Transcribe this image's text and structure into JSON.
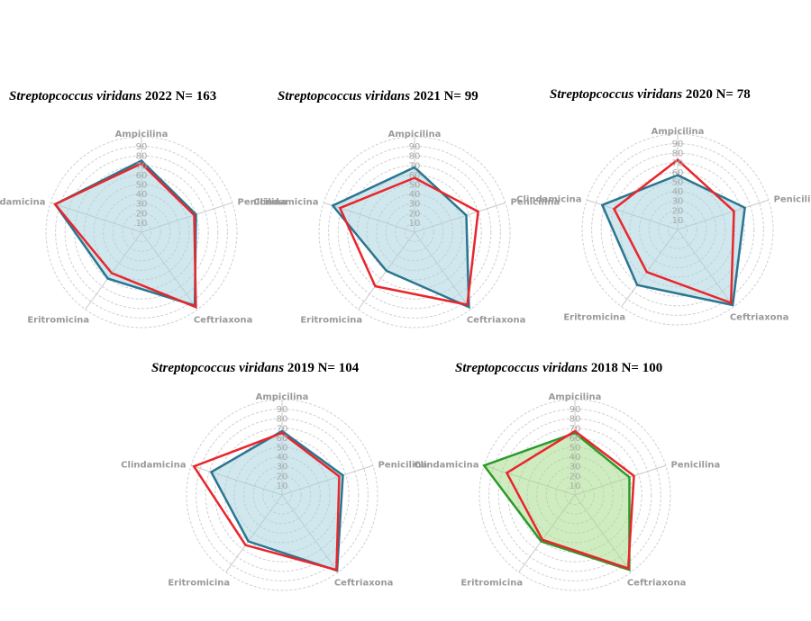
{
  "colors": {
    "teal": "#2a7590",
    "teal_fill": "#a7d3de",
    "red": "#e8262c",
    "green": "#2b9a2b",
    "green_fill": "#a8dc8c"
  },
  "chart_data": [
    {
      "type": "radar",
      "title": {
        "species": "Streptopcoccus viridans",
        "rest": " 2022 N= 163"
      },
      "axes": [
        "Ampicilina",
        "Penicilina",
        "Ceftriaxona",
        "Eritromicina",
        "Clindamicina"
      ],
      "ticks": [
        10,
        20,
        30,
        40,
        50,
        60,
        70,
        80,
        90
      ],
      "range": [
        0,
        100
      ],
      "series": [
        {
          "color": "teal",
          "filled": true,
          "values": [
            75,
            60,
            95,
            60,
            95
          ]
        },
        {
          "color": "red",
          "filled": false,
          "values": [
            72,
            58,
            97,
            53,
            95
          ]
        }
      ]
    },
    {
      "type": "radar",
      "title": {
        "species": "Streptopcoccus viridans",
        "rest": " 2021 N= 99"
      },
      "axes": [
        "Ampicilina",
        "Penicilina",
        "Ceftriaxona",
        "Eritromicina",
        "Clindamicina"
      ],
      "ticks": [
        10,
        20,
        30,
        40,
        50,
        60,
        70,
        80,
        90
      ],
      "range": [
        0,
        100
      ],
      "series": [
        {
          "color": "teal",
          "filled": true,
          "values": [
            68,
            57,
            97,
            50,
            90
          ]
        },
        {
          "color": "red",
          "filled": false,
          "values": [
            57,
            70,
            94,
            70,
            82
          ]
        }
      ]
    },
    {
      "type": "radar",
      "title": {
        "species": "Streptopcoccus viridans",
        "rest": " 2020 N= 78"
      },
      "axes": [
        "Ampicilina",
        "Penicilina",
        "Ceftriaxona",
        "Eritromicina",
        "Clindamicina"
      ],
      "ticks": [
        10,
        20,
        30,
        40,
        50,
        60,
        70,
        80,
        90
      ],
      "range": [
        0,
        100
      ],
      "series": [
        {
          "color": "teal",
          "filled": true,
          "values": [
            57,
            74,
            98,
            72,
            83
          ]
        },
        {
          "color": "red",
          "filled": false,
          "values": [
            73,
            62,
            95,
            55,
            70
          ]
        }
      ]
    },
    {
      "type": "radar",
      "title": {
        "species": "Streptopcoccus viridans",
        "rest": " 2019 N= 104"
      },
      "axes": [
        "Ampicilina",
        "Penicilina",
        "Ceftriaxona",
        "Eritromicina",
        "Clindamicina"
      ],
      "ticks": [
        10,
        20,
        30,
        40,
        50,
        60,
        70,
        80,
        90
      ],
      "range": [
        0,
        100
      ],
      "series": [
        {
          "color": "teal",
          "filled": true,
          "values": [
            67,
            67,
            98,
            60,
            78
          ]
        },
        {
          "color": "red",
          "filled": false,
          "values": [
            65,
            63,
            97,
            65,
            97
          ]
        }
      ]
    },
    {
      "type": "radar",
      "title": {
        "species": "Streptopcoccus viridans",
        "rest": " 2018 N= 100"
      },
      "axes": [
        "Ampicilina",
        "Penicilina",
        "Ceftriaxona",
        "Eritromicina",
        "Clindamicina"
      ],
      "ticks": [
        10,
        20,
        30,
        40,
        50,
        60,
        70,
        80,
        90
      ],
      "range": [
        0,
        100
      ],
      "series": [
        {
          "color": "green",
          "filled": true,
          "values": [
            65,
            60,
            97,
            60,
            100
          ]
        },
        {
          "color": "red",
          "filled": false,
          "values": [
            67,
            65,
            95,
            58,
            75
          ]
        }
      ]
    }
  ]
}
